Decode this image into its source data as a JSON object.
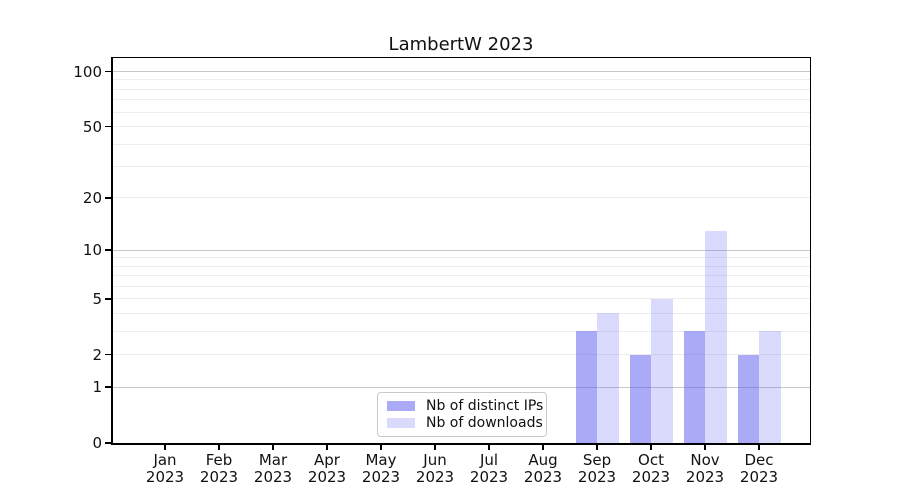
{
  "chart_data": {
    "type": "bar",
    "title": "LambertW 2023",
    "x_categories": [
      "Jan",
      "Feb",
      "Mar",
      "Apr",
      "May",
      "Jun",
      "Jul",
      "Aug",
      "Sep",
      "Oct",
      "Nov",
      "Dec"
    ],
    "x_year_label": "2023",
    "series": [
      {
        "name": "Nb of distinct IPs",
        "color": "#5555f0",
        "alpha": 0.5,
        "values": [
          0,
          0,
          0,
          0,
          0,
          0,
          0,
          0,
          3,
          2,
          3,
          2
        ]
      },
      {
        "name": "Nb of downloads",
        "color": "#5555f0",
        "alpha": 0.22,
        "values": [
          0,
          0,
          0,
          0,
          0,
          0,
          0,
          0,
          4,
          5,
          13,
          3
        ]
      }
    ],
    "yscale": "log1p",
    "ylabel": "",
    "xlabel": "",
    "ytick_labels": [
      0,
      1,
      2,
      5,
      10,
      20,
      50,
      100
    ],
    "major_gridlines": [
      1,
      10,
      100
    ],
    "minor_gridlines": [
      2,
      3,
      4,
      5,
      6,
      7,
      8,
      9,
      20,
      30,
      40,
      50,
      60,
      70,
      80,
      90
    ],
    "ylim": [
      0,
      117
    ],
    "grid_major_color": "#c8c8c8",
    "grid_minor_color": "#ececec",
    "legend": {
      "position": "lower center"
    }
  }
}
